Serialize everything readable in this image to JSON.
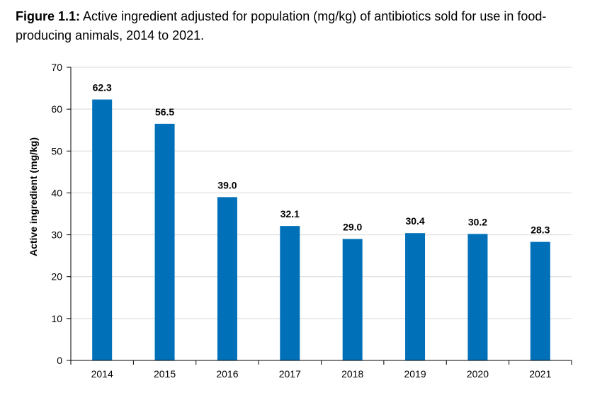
{
  "caption": {
    "label": "Figure 1.1:",
    "text": "Active ingredient adjusted for population (mg/kg) of antibiotics sold for use in food-producing animals, 2014 to 2021."
  },
  "chart_data": {
    "type": "bar",
    "title": "Active ingredient adjusted for population (mg/kg) of antibiotics sold for use in food-producing animals, 2014 to 2021.",
    "xlabel": "",
    "ylabel": "Active ingredient (mg/kg)",
    "categories": [
      "2014",
      "2015",
      "2016",
      "2017",
      "2018",
      "2019",
      "2020",
      "2021"
    ],
    "values": [
      62.3,
      56.5,
      39.0,
      32.1,
      29.0,
      30.4,
      30.2,
      28.3
    ],
    "value_labels": [
      "62.3",
      "56.5",
      "39.0",
      "32.1",
      "29.0",
      "30.4",
      "30.2",
      "28.3"
    ],
    "ylim": [
      0,
      70
    ],
    "yticks": [
      0,
      10,
      20,
      30,
      40,
      50,
      60,
      70
    ],
    "grid": true,
    "bar_color": "#0070b8",
    "grid_color": "#d9d9d9",
    "axis_color": "#000000"
  }
}
